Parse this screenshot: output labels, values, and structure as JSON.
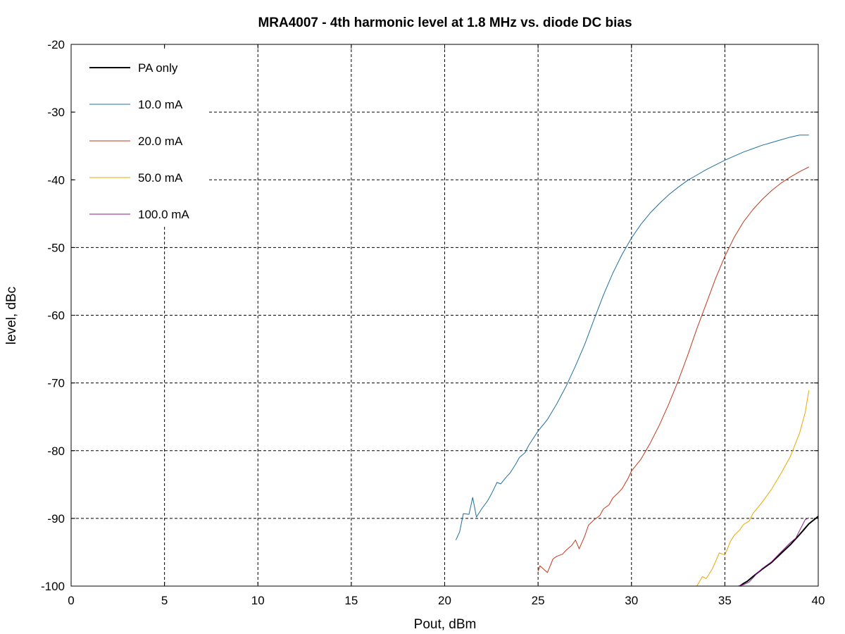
{
  "chart_data": {
    "type": "line",
    "title": "MRA4007 - 4th harmonic level at 1.8 MHz vs. diode DC bias",
    "xlabel": "Pout, dBm",
    "ylabel": "level, dBc",
    "xlim": [
      0,
      40
    ],
    "ylim": [
      -100,
      -20
    ],
    "xticks": [
      0,
      5,
      10,
      15,
      20,
      25,
      30,
      35,
      40
    ],
    "yticks": [
      -20,
      -30,
      -40,
      -50,
      -60,
      -70,
      -80,
      -90,
      -100
    ],
    "grid": true,
    "legend_position": "top-left",
    "series": [
      {
        "name": "PA only",
        "color": "#000000",
        "points": [
          [
            35.8,
            -100
          ],
          [
            36.0,
            -99.6
          ],
          [
            36.2,
            -99.3
          ],
          [
            36.5,
            -98.6
          ],
          [
            37.0,
            -97.5
          ],
          [
            37.5,
            -96.5
          ],
          [
            38.0,
            -95.2
          ],
          [
            38.5,
            -93.9
          ],
          [
            39.0,
            -92.4
          ],
          [
            39.5,
            -90.8
          ],
          [
            40.0,
            -89.7
          ]
        ]
      },
      {
        "name": "10.0 mA",
        "color": "#1f6f9f",
        "points": [
          [
            20.6,
            -93.2
          ],
          [
            20.8,
            -92.0
          ],
          [
            21.0,
            -89.3
          ],
          [
            21.3,
            -89.4
          ],
          [
            21.5,
            -86.9
          ],
          [
            21.7,
            -89.8
          ],
          [
            22.0,
            -88.5
          ],
          [
            22.3,
            -87.4
          ],
          [
            22.5,
            -86.4
          ],
          [
            22.8,
            -84.7
          ],
          [
            23.0,
            -84.9
          ],
          [
            23.3,
            -83.9
          ],
          [
            23.5,
            -83.3
          ],
          [
            23.8,
            -82.0
          ],
          [
            24.0,
            -81.0
          ],
          [
            24.3,
            -80.3
          ],
          [
            24.5,
            -79.2
          ],
          [
            25.0,
            -77.1
          ],
          [
            25.5,
            -75.4
          ],
          [
            26.0,
            -73.1
          ],
          [
            26.5,
            -70.5
          ],
          [
            27.0,
            -67.5
          ],
          [
            27.5,
            -64.3
          ],
          [
            28.0,
            -60.6
          ],
          [
            28.5,
            -57.0
          ],
          [
            29.0,
            -53.8
          ],
          [
            29.5,
            -51.0
          ],
          [
            30.0,
            -48.6
          ],
          [
            30.5,
            -46.6
          ],
          [
            31.0,
            -44.9
          ],
          [
            31.5,
            -43.5
          ],
          [
            32.0,
            -42.2
          ],
          [
            32.5,
            -41.1
          ],
          [
            33.0,
            -40.1
          ],
          [
            33.5,
            -39.3
          ],
          [
            34.0,
            -38.5
          ],
          [
            34.5,
            -37.8
          ],
          [
            35.0,
            -37.1
          ],
          [
            35.5,
            -36.5
          ],
          [
            36.0,
            -35.9
          ],
          [
            36.5,
            -35.4
          ],
          [
            37.0,
            -34.9
          ],
          [
            37.5,
            -34.5
          ],
          [
            38.0,
            -34.1
          ],
          [
            38.5,
            -33.7
          ],
          [
            39.0,
            -33.4
          ],
          [
            39.5,
            -33.4
          ]
        ]
      },
      {
        "name": "20.0 mA",
        "color": "#c0391b",
        "points": [
          [
            25.0,
            -97.8
          ],
          [
            25.1,
            -97.0
          ],
          [
            25.5,
            -98.0
          ],
          [
            25.8,
            -96.0
          ],
          [
            26.0,
            -95.6
          ],
          [
            26.3,
            -95.3
          ],
          [
            26.5,
            -94.7
          ],
          [
            26.8,
            -94.0
          ],
          [
            27.0,
            -93.2
          ],
          [
            27.2,
            -94.5
          ],
          [
            27.5,
            -92.6
          ],
          [
            27.7,
            -91.0
          ],
          [
            28.0,
            -90.2
          ],
          [
            28.3,
            -89.6
          ],
          [
            28.5,
            -88.6
          ],
          [
            28.8,
            -88.0
          ],
          [
            29.0,
            -87.0
          ],
          [
            29.3,
            -86.2
          ],
          [
            29.5,
            -85.6
          ],
          [
            29.8,
            -84.2
          ],
          [
            30.0,
            -83.0
          ],
          [
            30.5,
            -81.3
          ],
          [
            31.0,
            -78.9
          ],
          [
            31.5,
            -76.2
          ],
          [
            32.0,
            -73.1
          ],
          [
            32.5,
            -69.7
          ],
          [
            33.0,
            -66.0
          ],
          [
            33.5,
            -62.0
          ],
          [
            34.0,
            -58.3
          ],
          [
            34.5,
            -54.6
          ],
          [
            35.0,
            -51.3
          ],
          [
            35.5,
            -48.5
          ],
          [
            36.0,
            -46.2
          ],
          [
            36.5,
            -44.4
          ],
          [
            37.0,
            -42.9
          ],
          [
            37.5,
            -41.6
          ],
          [
            38.0,
            -40.5
          ],
          [
            38.5,
            -39.6
          ],
          [
            39.0,
            -38.8
          ],
          [
            39.5,
            -38.1
          ]
        ]
      },
      {
        "name": "50.0 mA",
        "color": "#e8a800",
        "points": [
          [
            33.5,
            -100
          ],
          [
            33.8,
            -98.6
          ],
          [
            34.0,
            -98.9
          ],
          [
            34.3,
            -97.6
          ],
          [
            34.5,
            -96.4
          ],
          [
            34.7,
            -95.1
          ],
          [
            35.0,
            -95.4
          ],
          [
            35.3,
            -93.4
          ],
          [
            35.5,
            -92.5
          ],
          [
            35.8,
            -91.7
          ],
          [
            36.0,
            -90.9
          ],
          [
            36.3,
            -90.4
          ],
          [
            36.5,
            -89.3
          ],
          [
            37.0,
            -87.6
          ],
          [
            37.5,
            -85.7
          ],
          [
            38.0,
            -83.4
          ],
          [
            38.5,
            -80.9
          ],
          [
            39.0,
            -77.4
          ],
          [
            39.3,
            -74.4
          ],
          [
            39.5,
            -71.1
          ]
        ]
      },
      {
        "name": "100.0 mA",
        "color": "#8b1a8b",
        "points": [
          [
            35.7,
            -100
          ],
          [
            36.0,
            -99.8
          ],
          [
            36.3,
            -99.4
          ],
          [
            36.7,
            -98.2
          ],
          [
            37.0,
            -97.4
          ],
          [
            37.5,
            -96.4
          ],
          [
            38.0,
            -95.0
          ],
          [
            38.5,
            -93.6
          ],
          [
            38.8,
            -92.9
          ],
          [
            39.0,
            -91.8
          ],
          [
            39.3,
            -90.2
          ],
          [
            39.5,
            -89.9
          ]
        ]
      }
    ]
  }
}
